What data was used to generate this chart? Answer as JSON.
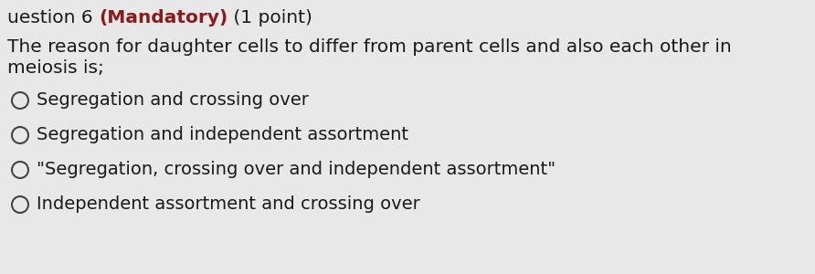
{
  "title_prefix": "uestion 6 ",
  "title_mandatory": "(Mandatory)",
  "title_suffix": " (1 point)",
  "question_line1": "The reason for daughter cells to differ from parent cells and also each other in",
  "question_line2": "meiosis is;",
  "options": [
    "Segregation and crossing over",
    "Segregation and independent assortment",
    "\"Segregation, crossing over and independent assortment\"",
    "Independent assortment and crossing over"
  ],
  "bg_color": "#e8e8e8",
  "text_color": "#1a1a1a",
  "mandatory_color": "#8b1a1a",
  "circle_edge_color": "#444444",
  "title_fontsize": 14.5,
  "question_fontsize": 14.5,
  "option_fontsize": 14.0
}
